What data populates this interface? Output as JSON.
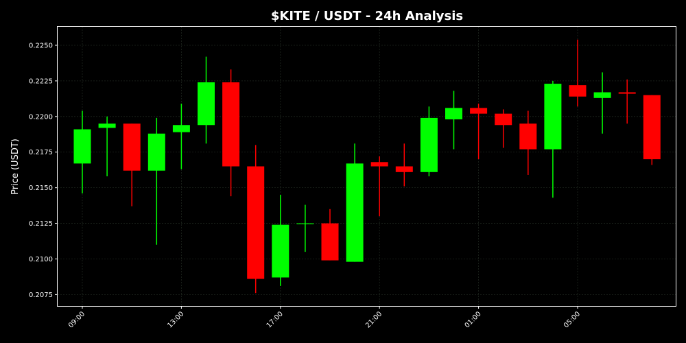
{
  "chart_data": {
    "type": "candlestick",
    "title": "$KITE / USDT - 24h Analysis",
    "ylabel": "Price (USDT)",
    "xlabel": "",
    "ylim": [
      0.2067,
      0.2263
    ],
    "y_ticks": [
      "0.2075",
      "0.2100",
      "0.2125",
      "0.2150",
      "0.2175",
      "0.2200",
      "0.2225",
      "0.2250"
    ],
    "x_ticks": [
      {
        "index": 0,
        "label": "09:00"
      },
      {
        "index": 4,
        "label": "13:00"
      },
      {
        "index": 8,
        "label": "17:00"
      },
      {
        "index": 12,
        "label": "21:00"
      },
      {
        "index": 16,
        "label": "01:00"
      },
      {
        "index": 20,
        "label": "05:00"
      }
    ],
    "grid": true,
    "colors": {
      "up": "#00ff00",
      "down": "#ff0000",
      "background": "#000000",
      "text": "#ffffff"
    },
    "candles": [
      {
        "open": 0.2167,
        "high": 0.2204,
        "low": 0.2146,
        "close": 0.2191
      },
      {
        "open": 0.2192,
        "high": 0.22,
        "low": 0.2158,
        "close": 0.2195
      },
      {
        "open": 0.2195,
        "high": 0.2195,
        "low": 0.2137,
        "close": 0.2162
      },
      {
        "open": 0.2162,
        "high": 0.2199,
        "low": 0.211,
        "close": 0.2188
      },
      {
        "open": 0.2189,
        "high": 0.2209,
        "low": 0.2163,
        "close": 0.2194
      },
      {
        "open": 0.2194,
        "high": 0.2242,
        "low": 0.2181,
        "close": 0.2224
      },
      {
        "open": 0.2224,
        "high": 0.2233,
        "low": 0.2144,
        "close": 0.2165
      },
      {
        "open": 0.2165,
        "high": 0.218,
        "low": 0.2076,
        "close": 0.2086
      },
      {
        "open": 0.2087,
        "high": 0.2145,
        "low": 0.2081,
        "close": 0.2124
      },
      {
        "open": 0.2125,
        "high": 0.2138,
        "low": 0.2105,
        "close": 0.2125
      },
      {
        "open": 0.2125,
        "high": 0.2135,
        "low": 0.2099,
        "close": 0.2099
      },
      {
        "open": 0.2098,
        "high": 0.2181,
        "low": 0.2098,
        "close": 0.2167
      },
      {
        "open": 0.2168,
        "high": 0.2172,
        "low": 0.213,
        "close": 0.2165
      },
      {
        "open": 0.2165,
        "high": 0.2181,
        "low": 0.2151,
        "close": 0.2161
      },
      {
        "open": 0.2161,
        "high": 0.2207,
        "low": 0.2158,
        "close": 0.2199
      },
      {
        "open": 0.2198,
        "high": 0.2218,
        "low": 0.2177,
        "close": 0.2206
      },
      {
        "open": 0.2206,
        "high": 0.2209,
        "low": 0.217,
        "close": 0.2202
      },
      {
        "open": 0.2202,
        "high": 0.2205,
        "low": 0.2178,
        "close": 0.2194
      },
      {
        "open": 0.2195,
        "high": 0.2204,
        "low": 0.2159,
        "close": 0.2177
      },
      {
        "open": 0.2177,
        "high": 0.2225,
        "low": 0.2143,
        "close": 0.2223
      },
      {
        "open": 0.2222,
        "high": 0.2254,
        "low": 0.2207,
        "close": 0.2214
      },
      {
        "open": 0.2213,
        "high": 0.2231,
        "low": 0.2188,
        "close": 0.2217
      },
      {
        "open": 0.2217,
        "high": 0.2226,
        "low": 0.2195,
        "close": 0.2216
      },
      {
        "open": 0.2215,
        "high": 0.2215,
        "low": 0.2166,
        "close": 0.217
      }
    ]
  }
}
